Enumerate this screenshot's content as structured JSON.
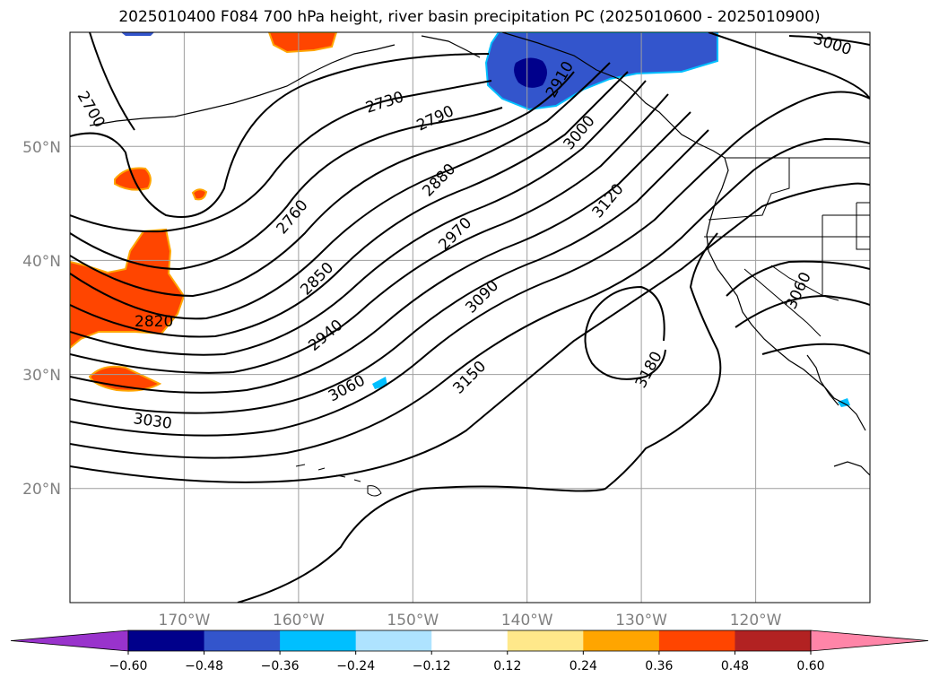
{
  "title": "2025010400 F084 700 hPa height, river basin precipitation PC (2025010600 - 2025010900)",
  "map": {
    "projection": "PlateCarree",
    "lon_range": [
      -180,
      -110
    ],
    "lat_range": [
      10,
      60
    ],
    "lat_ticks": [
      "20°N",
      "30°N",
      "40°N",
      "50°N"
    ],
    "lon_ticks": [
      "170°W",
      "160°W",
      "150°W",
      "140°W",
      "130°W",
      "120°W"
    ],
    "grid": true,
    "contour_labels": [
      "2700",
      "2730",
      "2760",
      "2790",
      "2820",
      "2850",
      "2880",
      "2910",
      "2940",
      "2970",
      "3000",
      "3030",
      "3060",
      "3090",
      "3120",
      "3150",
      "3180",
      "3060",
      "3000"
    ]
  },
  "colorbar": {
    "levels": [
      "-0.60",
      "-0.48",
      "-0.36",
      "-0.24",
      "-0.12",
      "0.12",
      "0.24",
      "0.36",
      "0.48",
      "0.60"
    ],
    "colors": [
      "#9933cc",
      "#00008b",
      "#3355cc",
      "#00bfff",
      "#aee3ff",
      "#ffffff",
      "#ffe88a",
      "#ffa500",
      "#ff4500",
      "#b22222",
      "#ff85a8"
    ],
    "extend": "both"
  },
  "colors": {
    "contour": "#000000",
    "grid": "#9e9e9e",
    "coast": "#000000",
    "positive_anomaly": "#ff4500",
    "negative_anomaly": "#3355cc"
  }
}
